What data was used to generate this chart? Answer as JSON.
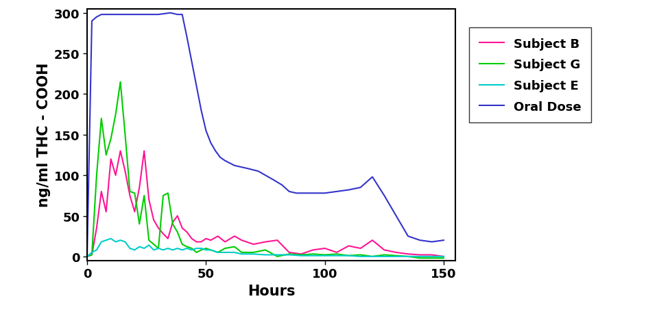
{
  "title": "",
  "xlabel": "Hours",
  "ylabel": "ng/ml THC - COOH",
  "xlim": [
    0,
    155
  ],
  "ylim": [
    -5,
    305
  ],
  "xticks": [
    0,
    50,
    100,
    150
  ],
  "yticks": [
    0,
    50,
    100,
    150,
    200,
    250,
    300
  ],
  "subject_b": {
    "label": "Subject B",
    "color": "#FF1493",
    "x": [
      0,
      2,
      4,
      6,
      8,
      10,
      12,
      14,
      16,
      18,
      20,
      22,
      24,
      26,
      28,
      30,
      32,
      34,
      36,
      38,
      40,
      42,
      44,
      46,
      48,
      50,
      52,
      55,
      58,
      62,
      65,
      70,
      75,
      80,
      85,
      90,
      95,
      100,
      105,
      110,
      115,
      120,
      125,
      130,
      135,
      140,
      145,
      150
    ],
    "y": [
      0,
      2,
      35,
      80,
      55,
      120,
      100,
      130,
      105,
      75,
      55,
      85,
      130,
      70,
      45,
      35,
      28,
      22,
      42,
      50,
      35,
      30,
      22,
      18,
      18,
      22,
      20,
      25,
      18,
      25,
      20,
      15,
      18,
      20,
      5,
      3,
      8,
      10,
      5,
      13,
      10,
      20,
      8,
      5,
      3,
      2,
      2,
      0
    ]
  },
  "subject_g": {
    "label": "Subject G",
    "color": "#00CC00",
    "x": [
      0,
      2,
      4,
      6,
      8,
      10,
      12,
      14,
      16,
      18,
      20,
      22,
      24,
      26,
      28,
      30,
      32,
      34,
      36,
      38,
      40,
      42,
      44,
      46,
      48,
      50,
      52,
      55,
      58,
      62,
      65,
      70,
      75,
      80,
      85,
      90,
      95,
      100,
      105,
      110,
      115,
      120,
      125,
      130,
      135,
      140,
      145,
      150
    ],
    "y": [
      0,
      2,
      100,
      170,
      125,
      145,
      175,
      215,
      150,
      80,
      78,
      40,
      75,
      20,
      15,
      10,
      75,
      78,
      40,
      30,
      15,
      12,
      10,
      5,
      8,
      10,
      8,
      5,
      10,
      12,
      5,
      5,
      8,
      0,
      3,
      2,
      3,
      2,
      3,
      1,
      2,
      0,
      2,
      1,
      0,
      -2,
      -2,
      -2
    ]
  },
  "subject_e": {
    "label": "Subject E",
    "color": "#00CCCC",
    "x": [
      0,
      2,
      4,
      6,
      8,
      10,
      12,
      14,
      16,
      18,
      20,
      22,
      24,
      26,
      28,
      30,
      32,
      34,
      36,
      38,
      40,
      42,
      44,
      46,
      48,
      50,
      52,
      55,
      58,
      62,
      65,
      70,
      75,
      80,
      85,
      90,
      95,
      100,
      105,
      110,
      115,
      120,
      125,
      130,
      135,
      140,
      145,
      150
    ],
    "y": [
      0,
      5,
      8,
      18,
      20,
      22,
      18,
      20,
      18,
      10,
      8,
      12,
      10,
      14,
      8,
      10,
      8,
      10,
      8,
      10,
      8,
      10,
      8,
      10,
      10,
      8,
      8,
      5,
      5,
      5,
      3,
      3,
      2,
      2,
      2,
      1,
      1,
      1,
      1,
      1,
      0,
      0,
      0,
      0,
      0,
      0,
      0,
      0
    ]
  },
  "oral_dose": {
    "label": "Oral Dose",
    "color": "#3333CC",
    "x": [
      0,
      2,
      4,
      6,
      8,
      10,
      15,
      20,
      25,
      30,
      35,
      38,
      40,
      42,
      44,
      46,
      48,
      50,
      52,
      54,
      56,
      58,
      60,
      62,
      65,
      68,
      72,
      75,
      78,
      82,
      85,
      88,
      92,
      95,
      100,
      105,
      110,
      115,
      120,
      125,
      130,
      135,
      140,
      145,
      150
    ],
    "y": [
      0,
      290,
      295,
      298,
      298,
      298,
      298,
      298,
      298,
      298,
      300,
      298,
      298,
      270,
      240,
      210,
      180,
      155,
      140,
      130,
      122,
      118,
      115,
      112,
      110,
      108,
      105,
      100,
      95,
      88,
      80,
      78,
      78,
      78,
      78,
      80,
      82,
      85,
      98,
      75,
      50,
      25,
      20,
      18,
      20
    ]
  },
  "legend_fontsize": 13,
  "axis_label_fontsize": 15,
  "tick_fontsize": 13,
  "linewidth": 1.5
}
